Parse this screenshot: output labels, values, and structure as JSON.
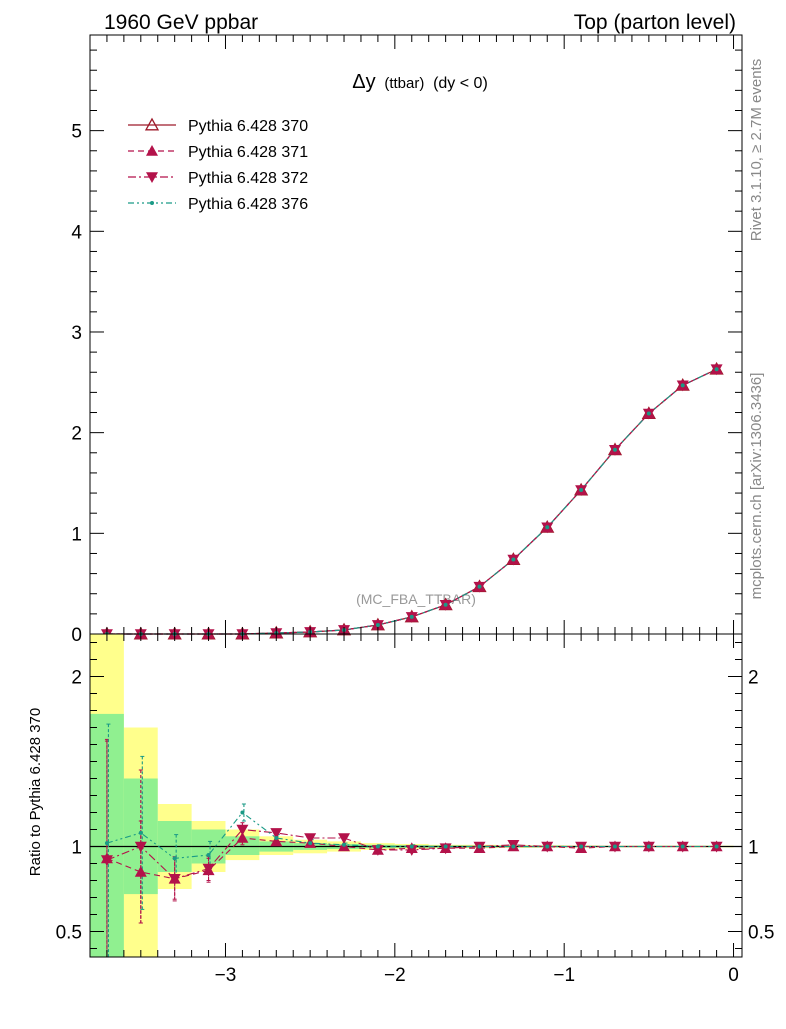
{
  "header": {
    "left": "1960 GeV ppbar",
    "right": "Top (parton level)"
  },
  "plot_title": {
    "main": "Δy",
    "sub": "(ttbar)",
    "cond": "(dy < 0)"
  },
  "side_labels": {
    "rivet": "Rivet 3.1.10, ≥ 2.7M events",
    "mcplots": "mcplots.cern.ch [arXiv:1306.3436]"
  },
  "analysis_label": "(MC_FBA_TTBAR)",
  "ratio_ylabel": "Ratio to Pythia 6.428 370",
  "colors": {
    "s370": "#9e1a2a",
    "s371": "#b3124a",
    "s372": "#b3124a",
    "s376": "#1a9a86",
    "band_yellow": "#ffff8c",
    "band_green": "#90f090"
  },
  "chart_data": [
    {
      "type": "line",
      "panel": "main",
      "xlim": [
        -3.8,
        0.05
      ],
      "ylim": [
        0,
        5.95
      ],
      "yticks": [
        0,
        1,
        2,
        3,
        4,
        5
      ],
      "x": [
        -3.7,
        -3.5,
        -3.3,
        -3.1,
        -2.9,
        -2.7,
        -2.5,
        -2.3,
        -2.1,
        -1.9,
        -1.7,
        -1.5,
        -1.3,
        -1.1,
        -0.9,
        -0.7,
        -0.5,
        -0.3,
        -0.1
      ],
      "series": [
        {
          "name": "Pythia 6.428 370",
          "style": "solid",
          "marker": "triangle-up-open",
          "values": [
            0.0,
            0.0,
            0.0,
            0.0,
            0.0,
            0.01,
            0.02,
            0.04,
            0.09,
            0.17,
            0.29,
            0.47,
            0.74,
            1.06,
            1.43,
            1.83,
            2.19,
            2.47,
            2.63
          ]
        },
        {
          "name": "Pythia 6.428 371",
          "style": "dashed",
          "marker": "triangle-up",
          "values": [
            0.0,
            0.0,
            0.0,
            0.0,
            0.0,
            0.01,
            0.02,
            0.04,
            0.09,
            0.17,
            0.29,
            0.47,
            0.74,
            1.06,
            1.43,
            1.83,
            2.19,
            2.47,
            2.63
          ]
        },
        {
          "name": "Pythia 6.428 372",
          "style": "dashdot",
          "marker": "triangle-down",
          "values": [
            0.0,
            0.0,
            0.0,
            0.0,
            0.0,
            0.01,
            0.02,
            0.04,
            0.09,
            0.17,
            0.29,
            0.47,
            0.74,
            1.06,
            1.43,
            1.83,
            2.19,
            2.47,
            2.63
          ]
        },
        {
          "name": "Pythia 6.428 376",
          "style": "dashdot-dot",
          "marker": "dot",
          "values": [
            0.0,
            0.0,
            0.0,
            0.0,
            0.0,
            0.01,
            0.02,
            0.04,
            0.09,
            0.17,
            0.29,
            0.47,
            0.74,
            1.06,
            1.43,
            1.83,
            2.19,
            2.47,
            2.63
          ]
        }
      ]
    },
    {
      "type": "line",
      "panel": "ratio",
      "xlim": [
        -3.8,
        0.05
      ],
      "ylim": [
        0.35,
        2.25
      ],
      "yticks": [
        0.5,
        1,
        2
      ],
      "xticks": [
        -3,
        -2,
        -1,
        0
      ],
      "xticklabels": [
        "−3",
        "−2",
        "−1",
        "0"
      ],
      "x": [
        -3.7,
        -3.5,
        -3.3,
        -3.1,
        -2.9,
        -2.7,
        -2.5,
        -2.3,
        -2.1,
        -1.9,
        -1.7,
        -1.5,
        -1.3,
        -1.1,
        -0.9,
        -0.7,
        -0.5,
        -0.3,
        -0.1
      ],
      "band_edges": [
        -3.8,
        -3.6,
        -3.4,
        -3.2,
        -3.0,
        -2.8,
        -2.6,
        -2.4,
        -2.2,
        -2.0,
        -1.8,
        -1.6,
        -1.4,
        -1.2,
        -1.0,
        -0.8,
        -0.6,
        -0.4,
        -0.2,
        0.0
      ],
      "band_yellow": [
        [
          0.3,
          2.25
        ],
        [
          0.3,
          1.7
        ],
        [
          0.75,
          1.25
        ],
        [
          0.85,
          1.15
        ],
        [
          0.92,
          1.1
        ],
        [
          0.95,
          1.06
        ],
        [
          0.96,
          1.04
        ],
        [
          0.97,
          1.03
        ],
        [
          0.98,
          1.02
        ],
        [
          0.985,
          1.015
        ],
        [
          0.99,
          1.01
        ],
        [
          0.99,
          1.01
        ],
        [
          0.992,
          1.008
        ],
        [
          0.993,
          1.007
        ],
        [
          0.994,
          1.006
        ],
        [
          0.995,
          1.005
        ],
        [
          0.995,
          1.005
        ],
        [
          0.995,
          1.005
        ],
        [
          0.995,
          1.005
        ]
      ],
      "band_green": [
        [
          0.3,
          1.78
        ],
        [
          0.72,
          1.4
        ],
        [
          0.85,
          1.15
        ],
        [
          0.9,
          1.1
        ],
        [
          0.95,
          1.06
        ],
        [
          0.97,
          1.03
        ],
        [
          0.98,
          1.02
        ],
        [
          0.985,
          1.015
        ],
        [
          0.99,
          1.01
        ],
        [
          0.992,
          1.008
        ],
        [
          0.994,
          1.006
        ],
        [
          0.995,
          1.005
        ],
        [
          0.996,
          1.004
        ],
        [
          0.996,
          1.004
        ],
        [
          0.997,
          1.003
        ],
        [
          0.997,
          1.003
        ],
        [
          0.997,
          1.003
        ],
        [
          0.997,
          1.003
        ],
        [
          0.997,
          1.003
        ]
      ],
      "series": [
        {
          "name": "Pythia 6.428 370",
          "values": [
            1,
            1,
            1,
            1,
            1,
            1,
            1,
            1,
            1,
            1,
            1,
            1,
            1,
            1,
            1,
            1,
            1,
            1,
            1
          ]
        },
        {
          "name": "Pythia 6.428 371",
          "values": [
            0.93,
            0.85,
            0.81,
            0.86,
            1.05,
            1.03,
            1.02,
            1.0,
            0.98,
            0.99,
            0.99,
            0.99,
            1.0,
            1.0,
            0.99,
            1.0,
            1.0,
            1.0,
            1.0
          ],
          "errors": [
            0.7,
            0.3,
            0.12,
            0.07,
            0.04,
            0.02,
            0.02,
            0.01,
            0.01,
            0.01,
            0.01,
            0.01,
            0.01,
            0.01,
            0.01,
            0.005,
            0.005,
            0.005,
            0.005
          ]
        },
        {
          "name": "Pythia 6.428 372",
          "values": [
            0.92,
            1.0,
            0.81,
            0.87,
            1.1,
            1.08,
            1.05,
            1.05,
            0.98,
            0.98,
            0.99,
            1.0,
            1.01,
            1.0,
            1.0,
            1.0,
            1.0,
            1.0,
            1.0
          ],
          "errors": [
            0.7,
            0.45,
            0.13,
            0.07,
            0.04,
            0.02,
            0.02,
            0.01,
            0.01,
            0.01,
            0.01,
            0.01,
            0.01,
            0.01,
            0.01,
            0.005,
            0.005,
            0.005,
            0.005
          ]
        },
        {
          "name": "Pythia 6.428 376",
          "values": [
            1.02,
            1.08,
            0.93,
            0.95,
            1.2,
            1.05,
            1.02,
            1.01,
            1.0,
            1.0,
            1.0,
            1.0,
            1.0,
            1.0,
            1.0,
            1.0,
            1.0,
            1.0,
            1.0
          ],
          "errors": [
            0.7,
            0.45,
            0.14,
            0.08,
            0.05,
            0.02,
            0.02,
            0.01,
            0.01,
            0.01,
            0.01,
            0.01,
            0.01,
            0.01,
            0.01,
            0.005,
            0.005,
            0.005,
            0.005
          ]
        }
      ]
    }
  ]
}
